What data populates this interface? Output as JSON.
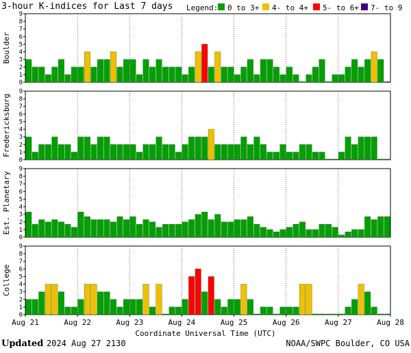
{
  "header": {
    "title": "3-hour K-indices for Last 7 days",
    "legend_title": "Legend:",
    "legend": [
      {
        "label": "0 to 3+",
        "color": "#00a000"
      },
      {
        "label": "4- to 4+",
        "color": "#f0c000"
      },
      {
        "label": "5- to 6+",
        "color": "#ff0000"
      },
      {
        "label": "7- to 9",
        "color": "#400080"
      }
    ]
  },
  "footer": {
    "updated_label": "Updated",
    "updated_value": "2024 Aug 27 2130",
    "source": "NOAA/SWPC Boulder, CO USA"
  },
  "chart_data": {
    "type": "bar",
    "xlabel": "Coordinate Universal Time (UTC)",
    "x_ticks": [
      "Aug 21",
      "Aug 22",
      "Aug 23",
      "Aug 24",
      "Aug 25",
      "Aug 26",
      "Aug 27",
      "Aug 28"
    ],
    "ylim": [
      0,
      9
    ],
    "y_ticks": [
      0,
      1,
      2,
      3,
      4,
      5,
      6,
      7,
      8,
      9
    ],
    "bins_per_day": 8,
    "panels": [
      {
        "name": "Boulder",
        "values": [
          3,
          2,
          2,
          1,
          2,
          3,
          1,
          2,
          2,
          4,
          2,
          3,
          3,
          4,
          2,
          3,
          3,
          1,
          3,
          2,
          3,
          2,
          2,
          2,
          1,
          2,
          4,
          5,
          2,
          4,
          2,
          2,
          1,
          2,
          3,
          1,
          3,
          3,
          2,
          1,
          2,
          1,
          0,
          1,
          2,
          3,
          0,
          1,
          1,
          2,
          3,
          2,
          3,
          4,
          3,
          0
        ]
      },
      {
        "name": "Fredericksburg",
        "values": [
          3,
          1,
          2,
          2,
          3,
          2,
          2,
          1,
          3,
          3,
          2,
          3,
          3,
          2,
          2,
          2,
          2,
          1,
          2,
          2,
          3,
          2,
          2,
          1,
          2,
          3,
          3,
          3,
          4,
          2,
          2,
          2,
          2,
          3,
          2,
          3,
          2,
          1,
          1,
          2,
          1,
          1,
          2,
          2,
          1,
          1,
          0,
          0,
          1,
          3,
          2,
          3,
          3,
          3,
          0,
          0
        ]
      },
      {
        "name": "Est. Planetary",
        "values": [
          3.3,
          1.7,
          2.3,
          2,
          2.3,
          2,
          1.7,
          1.3,
          3.3,
          2.7,
          2.3,
          2.3,
          2.3,
          2,
          2.7,
          2.3,
          2.7,
          1.7,
          2.3,
          2,
          1.3,
          1.7,
          1.7,
          1.7,
          2,
          2.3,
          3,
          3.3,
          2.3,
          3,
          2,
          2,
          2.3,
          2.3,
          2.7,
          1.7,
          1.3,
          1,
          0.7,
          1,
          1.3,
          1.7,
          2,
          1,
          1,
          1.7,
          1.7,
          1.3,
          0.3,
          0.7,
          1,
          1,
          2.7,
          2.3,
          2.7,
          2.7
        ]
      },
      {
        "name": "College",
        "values": [
          2,
          2,
          3,
          4,
          4,
          3,
          1,
          1,
          2,
          4,
          4,
          3,
          3,
          2,
          1,
          2,
          2,
          2,
          4,
          1,
          4,
          0,
          1,
          1,
          2,
          5,
          6,
          3,
          5,
          2,
          1,
          2,
          2,
          4,
          2,
          0,
          1,
          1,
          0,
          1,
          1,
          1,
          4,
          4,
          0,
          0,
          0,
          0,
          0,
          1,
          2,
          4,
          3,
          1,
          0,
          0
        ]
      }
    ]
  }
}
